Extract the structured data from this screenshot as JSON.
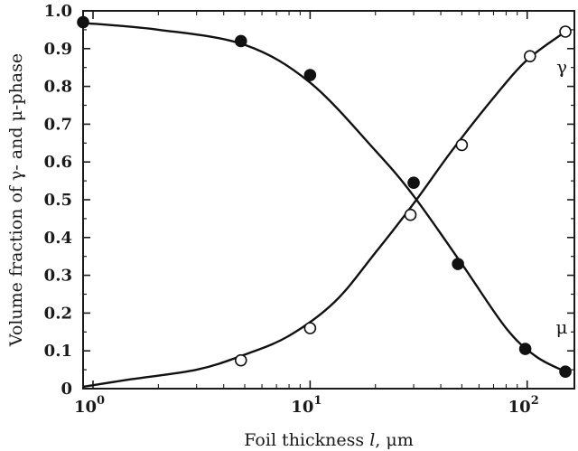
{
  "chart_data": {
    "type": "scatter",
    "x_scale": "log",
    "xlim": [
      0.9,
      165
    ],
    "ylim": [
      0,
      1.0
    ],
    "xlabel_parts": [
      "Foil thickness ",
      "l",
      ", μm"
    ],
    "ylabel": "Volume fraction of γ- and μ-phase",
    "x_ticks": [
      {
        "value": 1,
        "base": "10",
        "exp": "0"
      },
      {
        "value": 10,
        "base": "10",
        "exp": "1"
      },
      {
        "value": 100,
        "base": "10",
        "exp": "2"
      }
    ],
    "y_ticks": [
      "0",
      "0.1",
      "0.2",
      "0.3",
      "0.4",
      "0.5",
      "0.6",
      "0.7",
      "0.8",
      "0.9",
      "1.0"
    ],
    "series": [
      {
        "name": "μ",
        "marker": "filled-circle",
        "color": "#111111",
        "points": [
          [
            0.9,
            0.97
          ],
          [
            4.8,
            0.92
          ],
          [
            10,
            0.83
          ],
          [
            30,
            0.545
          ],
          [
            48,
            0.33
          ],
          [
            98,
            0.105
          ],
          [
            150,
            0.045
          ]
        ],
        "curve": [
          [
            0.9,
            0.968
          ],
          [
            2,
            0.95
          ],
          [
            5,
            0.91
          ],
          [
            10,
            0.81
          ],
          [
            20,
            0.63
          ],
          [
            30,
            0.51
          ],
          [
            50,
            0.33
          ],
          [
            80,
            0.16
          ],
          [
            110,
            0.085
          ],
          [
            150,
            0.045
          ]
        ]
      },
      {
        "name": "γ",
        "marker": "open-circle",
        "color": "#111111",
        "points": [
          [
            4.8,
            0.075
          ],
          [
            10,
            0.16
          ],
          [
            29,
            0.46
          ],
          [
            50,
            0.645
          ],
          [
            103,
            0.88
          ],
          [
            150,
            0.945
          ]
        ],
        "curve": [
          [
            0.9,
            0.005
          ],
          [
            1.5,
            0.025
          ],
          [
            3,
            0.05
          ],
          [
            5,
            0.09
          ],
          [
            8,
            0.14
          ],
          [
            13,
            0.23
          ],
          [
            20,
            0.36
          ],
          [
            30,
            0.49
          ],
          [
            45,
            0.63
          ],
          [
            70,
            0.77
          ],
          [
            100,
            0.87
          ],
          [
            150,
            0.945
          ]
        ]
      }
    ]
  }
}
